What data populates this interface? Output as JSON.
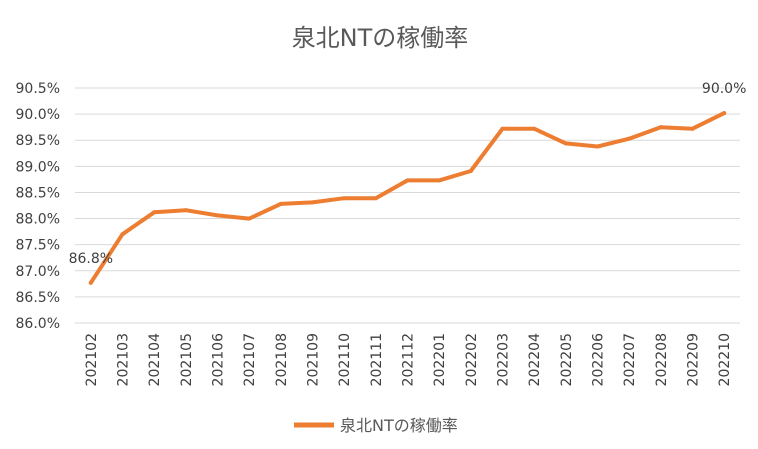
{
  "chart_data": {
    "type": "line",
    "title": "泉北NTの稼働率",
    "xlabel": "",
    "ylabel": "",
    "categories": [
      "202102",
      "202103",
      "202104",
      "202105",
      "202106",
      "202107",
      "202108",
      "202109",
      "202110",
      "202111",
      "202112",
      "202201",
      "202202",
      "202203",
      "202204",
      "202205",
      "202206",
      "202207",
      "202208",
      "202209",
      "202210"
    ],
    "series": [
      {
        "name": "泉北NTの稼働率",
        "color": "#ED7D31",
        "values": [
          86.77,
          87.7,
          88.12,
          88.16,
          88.06,
          88.0,
          88.28,
          88.31,
          88.39,
          88.39,
          88.73,
          88.73,
          88.91,
          89.72,
          89.72,
          89.44,
          89.38,
          89.53,
          89.75,
          89.72,
          90.02
        ]
      }
    ],
    "ylim": [
      86.0,
      90.5
    ],
    "yticks": [
      "86.0%",
      "86.5%",
      "87.0%",
      "87.5%",
      "88.0%",
      "88.5%",
      "89.0%",
      "89.5%",
      "90.0%",
      "90.5%"
    ],
    "data_labels": [
      {
        "index": 0,
        "text": "86.8%"
      },
      {
        "index": 20,
        "text": "90.0%"
      }
    ],
    "grid": true,
    "legend": "bottom"
  }
}
